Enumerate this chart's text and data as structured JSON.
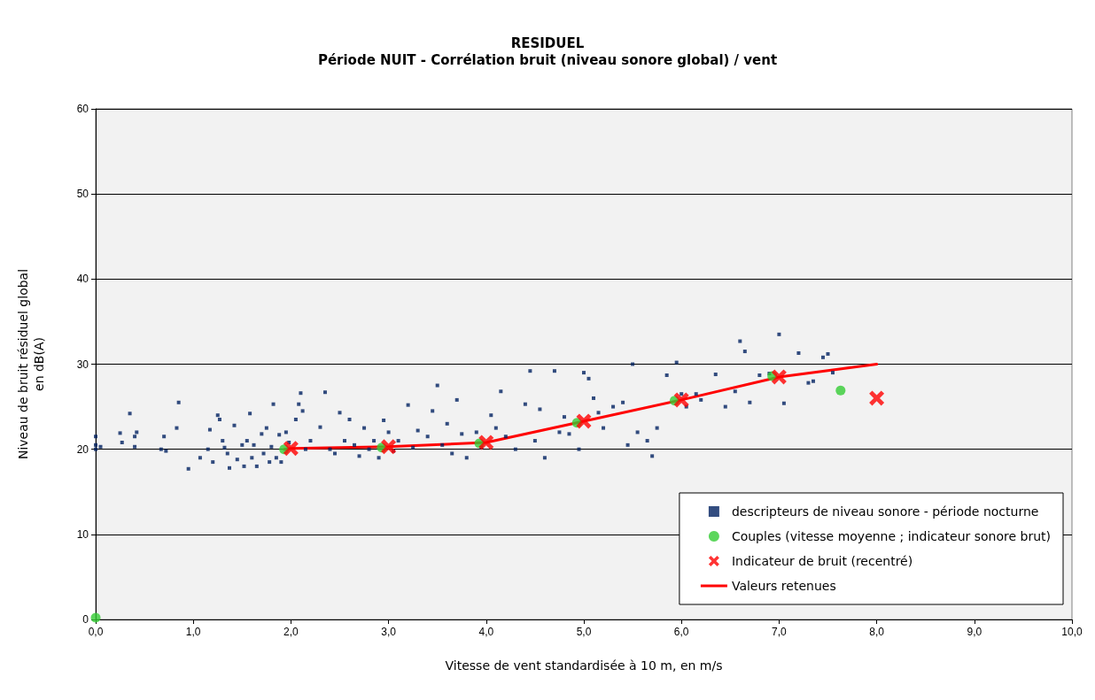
{
  "chart_data": {
    "type": "scatter",
    "title": "RESIDUEL",
    "subtitle": "Période NUIT - Corrélation bruit (niveau sonore global) / vent",
    "xlabel": "Vitesse de vent standardisée à 10 m, en m/s",
    "ylabel": "Niveau de bruit résiduel global\nen dB(A)",
    "xlim": [
      0,
      10
    ],
    "xticks": [
      {
        "value": 0,
        "label": "0,0"
      },
      {
        "value": 1,
        "label": "1,0"
      },
      {
        "value": 2,
        "label": "2,0"
      },
      {
        "value": 3,
        "label": "3,0"
      },
      {
        "value": 4,
        "label": "4,0"
      },
      {
        "value": 5,
        "label": "5,0"
      },
      {
        "value": 6,
        "label": "6,0"
      },
      {
        "value": 7,
        "label": "7,0"
      },
      {
        "value": 8,
        "label": "8,0"
      },
      {
        "value": 9,
        "label": "9,0"
      },
      {
        "value": 10,
        "label": "10,0"
      }
    ],
    "ylim": [
      0,
      60
    ],
    "yticks": [
      0,
      10,
      20,
      30,
      40,
      50,
      60
    ],
    "grid": "y",
    "legend": "bottom right",
    "series": [
      {
        "name": "descripteurs de niveau sonore - période nocturne",
        "marker": "square",
        "color": "#002060",
        "x": [
          0,
          0,
          0,
          0.05,
          0.25,
          0.27,
          0.35,
          0.4,
          0.4,
          0.42,
          0.67,
          0.7,
          0.72,
          0.83,
          0.85,
          0.95,
          1.07,
          1.15,
          1.17,
          1.2,
          1.25,
          1.27,
          1.3,
          1.32,
          1.35,
          1.37,
          1.42,
          1.45,
          1.5,
          1.52,
          1.55,
          1.58,
          1.6,
          1.62,
          1.65,
          1.7,
          1.72,
          1.75,
          1.78,
          1.8,
          1.82,
          1.85,
          1.88,
          1.9,
          1.95,
          1.98,
          2.05,
          2.08,
          2.1,
          2.12,
          2.15,
          2.2,
          2.3,
          2.35,
          2.4,
          2.45,
          2.5,
          2.55,
          2.6,
          2.65,
          2.7,
          2.75,
          2.8,
          2.85,
          2.9,
          2.95,
          3.0,
          3.05,
          3.1,
          3.2,
          3.25,
          3.3,
          3.4,
          3.45,
          3.5,
          3.55,
          3.6,
          3.65,
          3.7,
          3.75,
          3.8,
          3.9,
          3.95,
          4.05,
          4.1,
          4.15,
          4.2,
          4.3,
          4.4,
          4.45,
          4.5,
          4.55,
          4.6,
          4.7,
          4.75,
          4.8,
          4.85,
          4.95,
          5.0,
          5.05,
          5.1,
          5.15,
          5.2,
          5.3,
          5.4,
          5.45,
          5.5,
          5.55,
          5.65,
          5.7,
          5.75,
          5.85,
          5.95,
          6.0,
          6.05,
          6.15,
          6.2,
          6.35,
          6.45,
          6.55,
          6.6,
          6.65,
          6.7,
          6.8,
          6.9,
          7.0,
          7.05,
          7.2,
          7.3,
          7.35,
          7.45,
          7.5,
          7.55
        ],
        "values": [
          21.5,
          20.5,
          20,
          20.3,
          21.9,
          20.8,
          24.2,
          21.5,
          20.3,
          22,
          20,
          21.5,
          19.8,
          22.5,
          25.5,
          17.7,
          19,
          20,
          22.3,
          18.5,
          24,
          23.5,
          21,
          20.2,
          19.5,
          17.8,
          22.8,
          18.8,
          20.5,
          18,
          21,
          24.2,
          19,
          20.5,
          18,
          21.8,
          19.5,
          22.5,
          18.5,
          20.3,
          25.3,
          19,
          21.7,
          18.5,
          22,
          20.8,
          23.5,
          25.3,
          26.6,
          24.5,
          20,
          21,
          22.6,
          26.7,
          20,
          19.5,
          24.3,
          21,
          23.5,
          20.5,
          19.2,
          22.5,
          20,
          21,
          19,
          23.4,
          22,
          19.8,
          21,
          25.2,
          20.2,
          22.2,
          21.5,
          24.5,
          27.5,
          20.5,
          23,
          19.5,
          25.8,
          21.8,
          19,
          22,
          20.2,
          24,
          22.5,
          26.8,
          21.5,
          20,
          25.3,
          29.2,
          21,
          24.7,
          19,
          29.2,
          22,
          23.8,
          21.8,
          20,
          29,
          28.3,
          26,
          24.3,
          22.5,
          25,
          25.5,
          20.5,
          30,
          22,
          21,
          19.2,
          22.5,
          28.7,
          30.2,
          26.5,
          25,
          26.5,
          25.8,
          28.8,
          25,
          26.8,
          32.7,
          31.5,
          25.5,
          28.7,
          28.9,
          33.5,
          25.4,
          31.3,
          27.8,
          28,
          30.8,
          31.2,
          29
        ]
      },
      {
        "name": "Couples (vitesse moyenne ; indicateur sonore brut)",
        "type": "scatter",
        "marker": "circle",
        "color": "#33cc33",
        "x": [
          0,
          1.93,
          2.93,
          3.93,
          4.93,
          5.93,
          6.93,
          7.63
        ],
        "values": [
          0.2,
          20.0,
          20.2,
          20.7,
          23.1,
          25.7,
          28.6,
          26.9
        ]
      },
      {
        "name": "Indicateur de bruit (recentré)",
        "type": "scatter",
        "marker": "cross",
        "color": "#ff0000",
        "x": [
          2,
          3,
          4,
          5,
          6,
          7,
          8
        ],
        "values": [
          20.1,
          20.3,
          20.8,
          23.3,
          25.8,
          28.5,
          26.0
        ]
      },
      {
        "name": "Valeurs retenues",
        "type": "line",
        "marker": "none",
        "line_style": "solid",
        "color": "#ff0000",
        "x": [
          1.93,
          2,
          3,
          4,
          5,
          6,
          7,
          8
        ],
        "values": [
          20.0,
          20.1,
          20.3,
          20.8,
          23.3,
          25.8,
          28.5,
          30.0
        ]
      }
    ]
  }
}
